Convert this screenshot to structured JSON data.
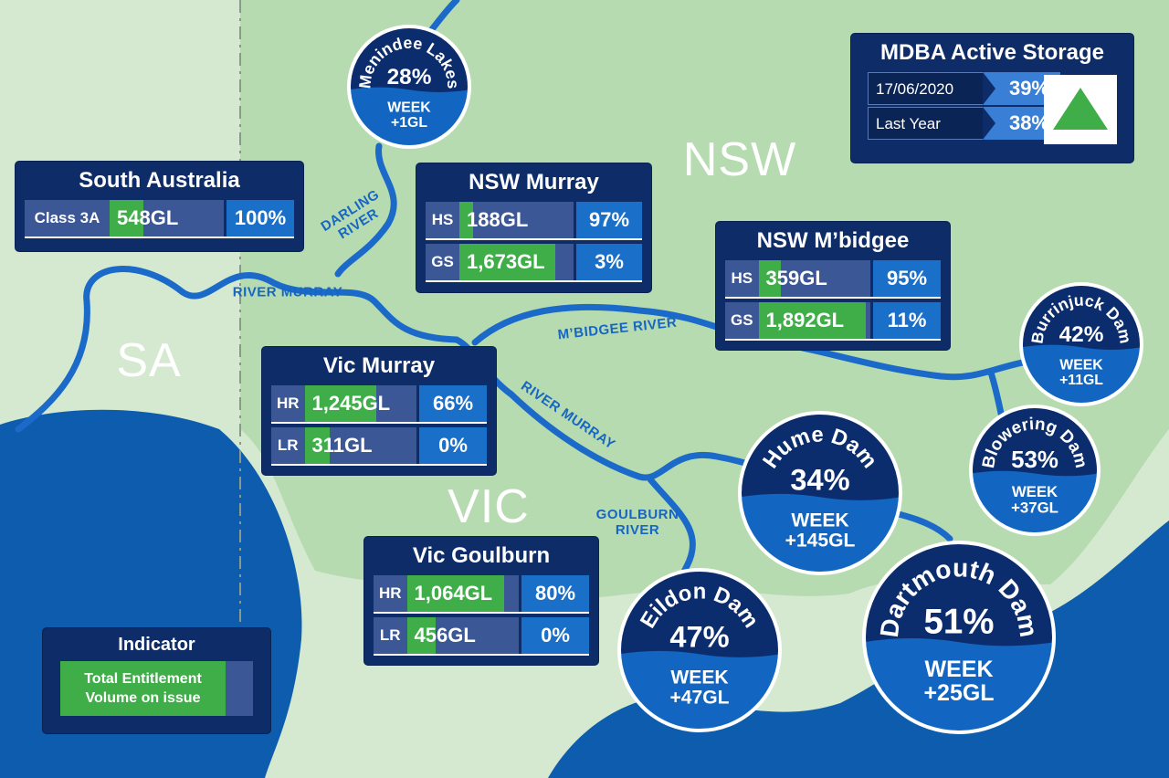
{
  "regions": {
    "nsw": "NSW",
    "sa": "SA",
    "vic": "VIC"
  },
  "rivers": [
    [
      "DARLING",
      "RIVER"
    ],
    [
      "RIVER MURRAY"
    ],
    [
      "M’BIDGEE RIVER"
    ],
    [
      "RIVER MURRAY"
    ],
    [
      "GOULBURN",
      "RIVER"
    ]
  ],
  "storage": {
    "title": "MDBA Active Storage",
    "rows": [
      {
        "label": "17/06/2020",
        "value": "39%"
      },
      {
        "label": "Last Year",
        "value": "38%"
      }
    ]
  },
  "allocations": [
    {
      "title": "South Australia",
      "rows": [
        {
          "class": "Class 3A",
          "volume": "548GL",
          "percent": "100%"
        }
      ]
    },
    {
      "title": "NSW Murray",
      "rows": [
        {
          "class": "HS",
          "volume": "188GL",
          "percent": "97%"
        },
        {
          "class": "GS",
          "volume": "1,673GL",
          "percent": "3%"
        }
      ]
    },
    {
      "title": "NSW M’bidgee",
      "rows": [
        {
          "class": "HS",
          "volume": "359GL",
          "percent": "95%"
        },
        {
          "class": "GS",
          "volume": "1,892GL",
          "percent": "11%"
        }
      ]
    },
    {
      "title": "Vic Murray",
      "rows": [
        {
          "class": "HR",
          "volume": "1,245GL",
          "percent": "66%"
        },
        {
          "class": "LR",
          "volume": "311GL",
          "percent": "0%"
        }
      ]
    },
    {
      "title": "Vic Goulburn",
      "rows": [
        {
          "class": "HR",
          "volume": "1,064GL",
          "percent": "80%"
        },
        {
          "class": "LR",
          "volume": "456GL",
          "percent": "0%"
        }
      ]
    }
  ],
  "dams": [
    {
      "name": "Menindee Lakes",
      "percent": "28%",
      "week_label": "WEEK",
      "week_change": "+1GL"
    },
    {
      "name": "Burrinjuck Dam",
      "percent": "42%",
      "week_label": "WEEK",
      "week_change": "+11GL"
    },
    {
      "name": "Hume Dam",
      "percent": "34%",
      "week_label": "WEEK",
      "week_change": "+145GL"
    },
    {
      "name": "Blowering Dam",
      "percent": "53%",
      "week_label": "WEEK",
      "week_change": "+37GL"
    },
    {
      "name": "Eildon Dam",
      "percent": "47%",
      "week_label": "WEEK",
      "week_change": "+47GL"
    },
    {
      "name": "Dartmouth Dam",
      "percent": "51%",
      "week_label": "WEEK",
      "week_change": "+25GL"
    }
  ],
  "indicator": {
    "title": "Indicator",
    "label": "Total Entitlement Volume on issue"
  }
}
